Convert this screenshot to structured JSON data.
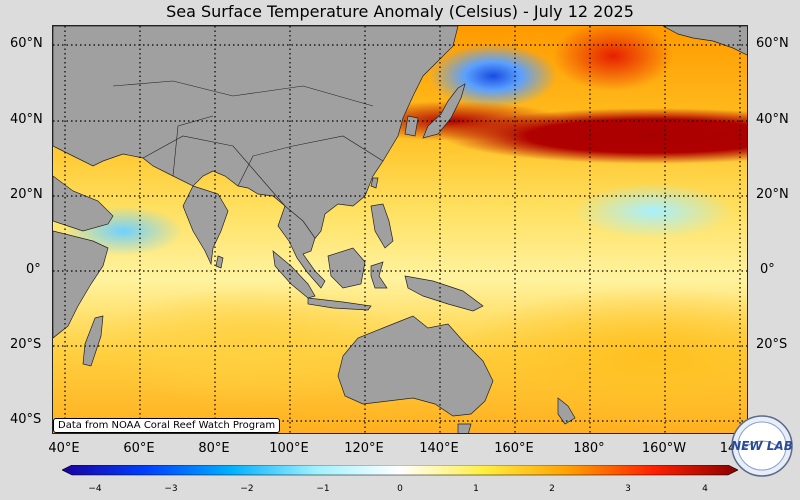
{
  "title": "Sea Surface Temperature Anomaly (Celsius) - July 12 2025",
  "credit": "Data from NOAA Coral Reef Watch Program",
  "lat_labels": [
    "60°N",
    "40°N",
    "20°N",
    "0°",
    "20°S",
    "40°S"
  ],
  "lon_labels": [
    "40°E",
    "60°E",
    "80°E",
    "100°E",
    "120°E",
    "140°E",
    "160°E",
    "180°",
    "160°W",
    "14"
  ],
  "colorbar_ticks": [
    "−4",
    "−3",
    "−2",
    "−1",
    "0",
    "1",
    "2",
    "3",
    "4"
  ],
  "logo_text": "NEW LAB",
  "colors": {
    "land": "#a0a0a0",
    "background": "#dcdcdc",
    "colorbar": [
      "#1a00a0",
      "#0040ff",
      "#00b0ff",
      "#a0f0ff",
      "#ffffff",
      "#ffee40",
      "#ffa000",
      "#ff2000",
      "#8a0000"
    ]
  }
}
